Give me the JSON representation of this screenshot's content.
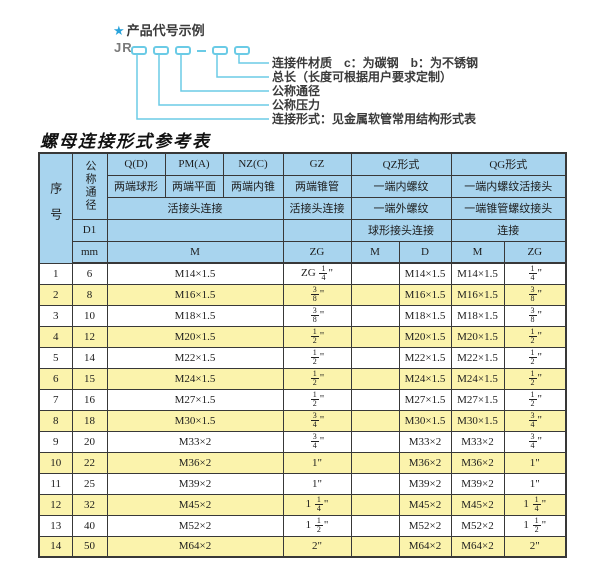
{
  "diagram": {
    "star": "★",
    "heading": "产品代号示例",
    "code_prefix": "JR",
    "labels": [
      "连接件材质　c：为碳钢　b：为不锈钢",
      "总长（长度可根据用户要求定制）",
      "公称通径",
      "公称压力",
      "连接形式：见金属软管常用结构形式表"
    ]
  },
  "table": {
    "title": "螺母连接形式参考表",
    "header": {
      "seq": "序号",
      "dn": "公称通径",
      "d1": "D1",
      "mm": "mm",
      "groups": [
        "Q(D)",
        "PM(A)",
        "NZ(C)",
        "GZ",
        "QZ形式",
        "QG形式"
      ],
      "end_types": [
        "两端球形",
        "两端平面",
        "两端内锥",
        "两端锥管",
        "一端内螺纹",
        "一端内螺纹活接头"
      ],
      "joint_types": [
        "活接头连接",
        "活接头连接",
        "一端外螺纹",
        "一端锥管螺纹接头"
      ],
      "conn_types": [
        "球形接头连接",
        "连接"
      ],
      "units": [
        "M",
        "ZG",
        "M",
        "D",
        "M",
        "ZG"
      ]
    },
    "rows": [
      {
        "no": "1",
        "dn": "6",
        "m": "M14×1.5",
        "gz": "ZG 1/4\"",
        "qz_m": "",
        "qz_d": "M14×1.5",
        "qg_m": "M14×1.5",
        "qg_zg": "1/4\""
      },
      {
        "no": "2",
        "dn": "8",
        "m": "M16×1.5",
        "gz": "3/8\"",
        "qz_m": "",
        "qz_d": "M16×1.5",
        "qg_m": "M16×1.5",
        "qg_zg": "3/8\""
      },
      {
        "no": "3",
        "dn": "10",
        "m": "M18×1.5",
        "gz": "3/8\"",
        "qz_m": "",
        "qz_d": "M18×1.5",
        "qg_m": "M18×1.5",
        "qg_zg": "3/8\""
      },
      {
        "no": "4",
        "dn": "12",
        "m": "M20×1.5",
        "gz": "1/2\"",
        "qz_m": "",
        "qz_d": "M20×1.5",
        "qg_m": "M20×1.5",
        "qg_zg": "1/2\""
      },
      {
        "no": "5",
        "dn": "14",
        "m": "M22×1.5",
        "gz": "1/2\"",
        "qz_m": "",
        "qz_d": "M22×1.5",
        "qg_m": "M22×1.5",
        "qg_zg": "1/2\""
      },
      {
        "no": "6",
        "dn": "15",
        "m": "M24×1.5",
        "gz": "1/2\"",
        "qz_m": "",
        "qz_d": "M24×1.5",
        "qg_m": "M24×1.5",
        "qg_zg": "1/2\""
      },
      {
        "no": "7",
        "dn": "16",
        "m": "M27×1.5",
        "gz": "1/2\"",
        "qz_m": "",
        "qz_d": "M27×1.5",
        "qg_m": "M27×1.5",
        "qg_zg": "1/2\""
      },
      {
        "no": "8",
        "dn": "18",
        "m": "M30×1.5",
        "gz": "3/4\"",
        "qz_m": "",
        "qz_d": "M30×1.5",
        "qg_m": "M30×1.5",
        "qg_zg": "3/4\""
      },
      {
        "no": "9",
        "dn": "20",
        "m": "M33×2",
        "gz": "3/4\"",
        "qz_m": "",
        "qz_d": "M33×2",
        "qg_m": "M33×2",
        "qg_zg": "3/4\""
      },
      {
        "no": "10",
        "dn": "22",
        "m": "M36×2",
        "gz": "1\"",
        "qz_m": "",
        "qz_d": "M36×2",
        "qg_m": "M36×2",
        "qg_zg": "1\""
      },
      {
        "no": "11",
        "dn": "25",
        "m": "M39×2",
        "gz": "1\"",
        "qz_m": "",
        "qz_d": "M39×2",
        "qg_m": "M39×2",
        "qg_zg": "1\""
      },
      {
        "no": "12",
        "dn": "32",
        "m": "M45×2",
        "gz": "1 1/4\"",
        "qz_m": "",
        "qz_d": "M45×2",
        "qg_m": "M45×2",
        "qg_zg": "1 1/4\""
      },
      {
        "no": "13",
        "dn": "40",
        "m": "M52×2",
        "gz": "1 1/2\"",
        "qz_m": "",
        "qz_d": "M52×2",
        "qg_m": "M52×2",
        "qg_zg": "1 1/2\""
      },
      {
        "no": "14",
        "dn": "50",
        "m": "M64×2",
        "gz": "2\"",
        "qz_m": "",
        "qz_d": "M64×2",
        "qg_m": "M64×2",
        "qg_zg": "2\""
      }
    ]
  },
  "colors": {
    "header_blue": "#a8d4ee",
    "row_yellow": "#fbf3ac",
    "diagram_cyan": "#6bcbe6",
    "star_blue": "#29a3db",
    "border_dark": "#383838"
  }
}
